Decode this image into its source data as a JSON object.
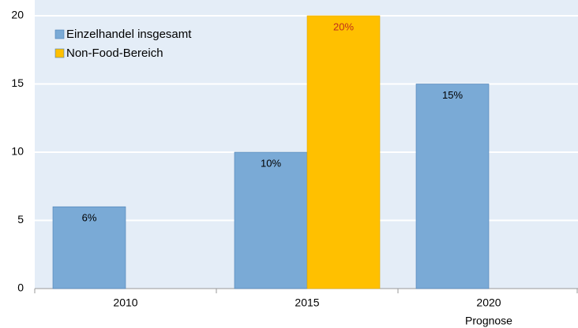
{
  "chart_data": {
    "type": "bar",
    "categories": [
      "2010",
      "2015",
      "2020"
    ],
    "category_notes": [
      null,
      null,
      "Prognose"
    ],
    "series": [
      {
        "name": "Einzelhandel insgesamt",
        "color": "#7aaad6",
        "label_color": "#000000",
        "values": [
          6,
          10,
          15
        ],
        "value_labels": [
          "6%",
          "10%",
          "15%"
        ]
      },
      {
        "name": "Non-Food-Bereich",
        "color": "#ffc000",
        "label_color": "#c0301c",
        "values": [
          null,
          20,
          null
        ],
        "value_labels": [
          null,
          "20%",
          null
        ]
      }
    ],
    "ylim": [
      0,
      20
    ],
    "yticks": [
      0,
      5,
      10,
      15,
      20
    ],
    "grid": true,
    "legend": "top-left"
  }
}
